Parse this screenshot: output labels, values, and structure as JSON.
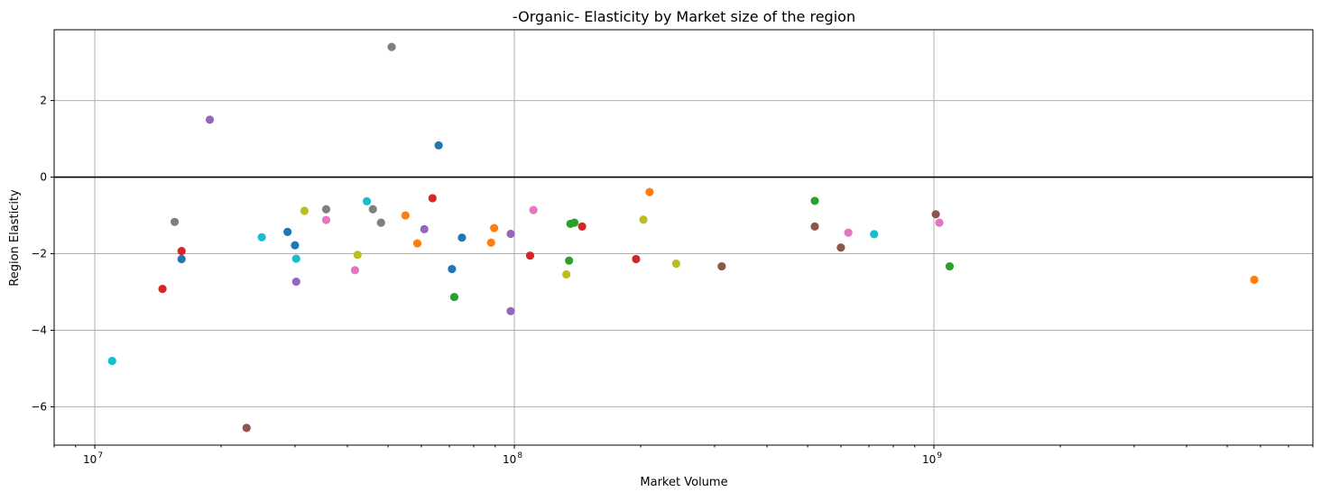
{
  "chart_data": {
    "type": "scatter",
    "title": "-Organic- Elasticity by Market size of the region",
    "xlabel": "Market Volume",
    "ylabel": "Region Elasticity",
    "x_scale": "log",
    "xlim": [
      8000000,
      8000000000
    ],
    "ylim": [
      -7.0,
      3.85
    ],
    "x_ticks": [
      {
        "value": 10000000,
        "base": "10",
        "exp": "7"
      },
      {
        "value": 100000000,
        "base": "10",
        "exp": "8"
      },
      {
        "value": 1000000000,
        "base": "10",
        "exp": "9"
      }
    ],
    "y_ticks": [
      {
        "value": 2,
        "label": "2"
      },
      {
        "value": 0,
        "label": "0"
      },
      {
        "value": -2,
        "label": "−2"
      },
      {
        "value": -4,
        "label": "−4"
      },
      {
        "value": -6,
        "label": "−6"
      }
    ],
    "grid": true,
    "reference_line_y": 0,
    "points": [
      {
        "x": 11000000,
        "y": -4.8,
        "color": "#17becf"
      },
      {
        "x": 14500000,
        "y": -2.92,
        "color": "#d62728"
      },
      {
        "x": 15500000,
        "y": -1.17,
        "color": "#7f7f7f"
      },
      {
        "x": 16100000,
        "y": -1.93,
        "color": "#d62728"
      },
      {
        "x": 16100000,
        "y": -2.14,
        "color": "#1f77b4"
      },
      {
        "x": 18800000,
        "y": 1.5,
        "color": "#9467bd"
      },
      {
        "x": 23000000,
        "y": -6.55,
        "color": "#8c564b"
      },
      {
        "x": 25000000,
        "y": -1.57,
        "color": "#17becf"
      },
      {
        "x": 28800000,
        "y": -1.43,
        "color": "#1f77b4"
      },
      {
        "x": 30000000,
        "y": -1.78,
        "color": "#1f77b4"
      },
      {
        "x": 30200000,
        "y": -2.13,
        "color": "#17becf"
      },
      {
        "x": 30200000,
        "y": -2.73,
        "color": "#9467bd"
      },
      {
        "x": 31600000,
        "y": -0.88,
        "color": "#bcbd22"
      },
      {
        "x": 35600000,
        "y": -0.84,
        "color": "#7f7f7f"
      },
      {
        "x": 35600000,
        "y": -1.12,
        "color": "#e377c2"
      },
      {
        "x": 41700000,
        "y": -2.43,
        "color": "#e377c2"
      },
      {
        "x": 42300000,
        "y": -2.03,
        "color": "#bcbd22"
      },
      {
        "x": 44500000,
        "y": -0.63,
        "color": "#17becf"
      },
      {
        "x": 46000000,
        "y": -0.84,
        "color": "#7f7f7f"
      },
      {
        "x": 48100000,
        "y": -1.19,
        "color": "#7f7f7f"
      },
      {
        "x": 51000000,
        "y": 3.4,
        "color": "#7f7f7f"
      },
      {
        "x": 55000000,
        "y": -1.0,
        "color": "#ff7f0e"
      },
      {
        "x": 58700000,
        "y": -1.73,
        "color": "#ff7f0e"
      },
      {
        "x": 61000000,
        "y": -1.36,
        "color": "#9467bd"
      },
      {
        "x": 63800000,
        "y": -0.55,
        "color": "#d62728"
      },
      {
        "x": 66000000,
        "y": 0.83,
        "color": "#1f77b4"
      },
      {
        "x": 71000000,
        "y": -2.4,
        "color": "#1f77b4"
      },
      {
        "x": 71900000,
        "y": -3.13,
        "color": "#2ca02c"
      },
      {
        "x": 75000000,
        "y": -1.58,
        "color": "#1f77b4"
      },
      {
        "x": 88000000,
        "y": -1.71,
        "color": "#ff7f0e"
      },
      {
        "x": 89500000,
        "y": -1.33,
        "color": "#ff7f0e"
      },
      {
        "x": 98000000,
        "y": -1.48,
        "color": "#9467bd"
      },
      {
        "x": 98000000,
        "y": -3.5,
        "color": "#9467bd"
      },
      {
        "x": 109000000,
        "y": -2.05,
        "color": "#d62728"
      },
      {
        "x": 111000000,
        "y": -0.86,
        "color": "#e377c2"
      },
      {
        "x": 133000000,
        "y": -2.54,
        "color": "#bcbd22"
      },
      {
        "x": 135000000,
        "y": -2.18,
        "color": "#2ca02c"
      },
      {
        "x": 136000000,
        "y": -1.22,
        "color": "#2ca02c"
      },
      {
        "x": 139000000,
        "y": -1.19,
        "color": "#2ca02c"
      },
      {
        "x": 145000000,
        "y": -1.29,
        "color": "#d62728"
      },
      {
        "x": 195000000,
        "y": -2.14,
        "color": "#d62728"
      },
      {
        "x": 203000000,
        "y": -1.11,
        "color": "#bcbd22"
      },
      {
        "x": 210000000,
        "y": -0.39,
        "color": "#ff7f0e"
      },
      {
        "x": 243000000,
        "y": -2.26,
        "color": "#bcbd22"
      },
      {
        "x": 312000000,
        "y": -2.33,
        "color": "#8c564b"
      },
      {
        "x": 520000000,
        "y": -0.62,
        "color": "#2ca02c"
      },
      {
        "x": 520000000,
        "y": -1.29,
        "color": "#8c564b"
      },
      {
        "x": 600000000,
        "y": -1.84,
        "color": "#8c564b"
      },
      {
        "x": 625000000,
        "y": -1.45,
        "color": "#e377c2"
      },
      {
        "x": 720000000,
        "y": -1.49,
        "color": "#17becf"
      },
      {
        "x": 1010000000,
        "y": -0.97,
        "color": "#8c564b"
      },
      {
        "x": 1030000000,
        "y": -1.19,
        "color": "#e377c2"
      },
      {
        "x": 1090000000,
        "y": -2.33,
        "color": "#2ca02c"
      },
      {
        "x": 5800000000,
        "y": -2.68,
        "color": "#ff7f0e"
      }
    ]
  }
}
